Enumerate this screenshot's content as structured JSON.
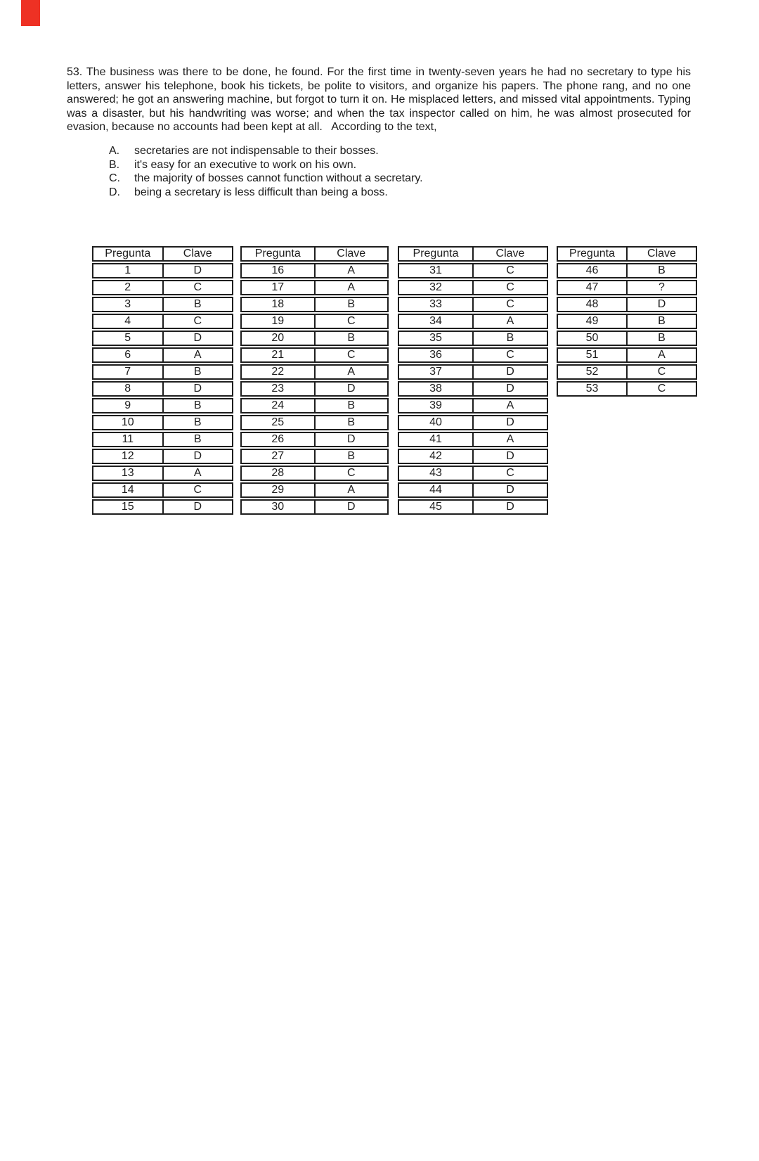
{
  "page": {
    "red_mark_color": "#ee3124",
    "background_color": "#ffffff",
    "text_color": "#1c1c1c"
  },
  "question": {
    "number": "53",
    "paragraph": "53. The business was there to be done, he found. For the first time in twenty-seven years he had no secretary to type his letters, answer his telephone, book his tickets, be polite to visitors, and organize his papers. The phone rang, and no one answered; he got an answering machine, but forgot to turn it on. He misplaced letters, and missed vital appointments. Typing was a disaster, but his handwriting was worse; and when the tax inspector called on him, he was almost prosecuted for evasion, because no accounts had been kept at all.   According to the text,",
    "options": [
      {
        "label": "A.",
        "text": "secretaries are not indispensable to their bosses."
      },
      {
        "label": "B.",
        "text": "it's easy for an executive to work on his own."
      },
      {
        "label": "C.",
        "text": "the majority of bosses cannot function without a secretary."
      },
      {
        "label": "D.",
        "text": "being a secretary is less difficult than being a boss."
      }
    ]
  },
  "answer_tables": [
    {
      "headers": [
        "Pregunta",
        "Clave"
      ],
      "rows": [
        [
          "1",
          "D"
        ],
        [
          "2",
          "C"
        ],
        [
          "3",
          "B"
        ],
        [
          "4",
          "C"
        ],
        [
          "5",
          "D"
        ],
        [
          "6",
          "A"
        ],
        [
          "7",
          "B"
        ],
        [
          "8",
          "D"
        ],
        [
          "9",
          "B"
        ],
        [
          "10",
          "B"
        ],
        [
          "11",
          "B"
        ],
        [
          "12",
          "D"
        ],
        [
          "13",
          "A"
        ],
        [
          "14",
          "C"
        ],
        [
          "15",
          "D"
        ]
      ]
    },
    {
      "headers": [
        "Pregunta",
        "Clave"
      ],
      "rows": [
        [
          "16",
          "A"
        ],
        [
          "17",
          "A"
        ],
        [
          "18",
          "B"
        ],
        [
          "19",
          "C"
        ],
        [
          "20",
          "B"
        ],
        [
          "21",
          "C"
        ],
        [
          "22",
          "A"
        ],
        [
          "23",
          "D"
        ],
        [
          "24",
          "B"
        ],
        [
          "25",
          "B"
        ],
        [
          "26",
          "D"
        ],
        [
          "27",
          "B"
        ],
        [
          "28",
          "C"
        ],
        [
          "29",
          "A"
        ],
        [
          "30",
          "D"
        ]
      ]
    },
    {
      "headers": [
        "Pregunta",
        "Clave"
      ],
      "rows": [
        [
          "31",
          "C"
        ],
        [
          "32",
          "C"
        ],
        [
          "33",
          "C"
        ],
        [
          "34",
          "A"
        ],
        [
          "35",
          "B"
        ],
        [
          "36",
          "C"
        ],
        [
          "37",
          "D"
        ],
        [
          "38",
          "D"
        ],
        [
          "39",
          "A"
        ],
        [
          "40",
          "D"
        ],
        [
          "41",
          "A"
        ],
        [
          "42",
          "D"
        ],
        [
          "43",
          "C"
        ],
        [
          "44",
          "D"
        ],
        [
          "45",
          "D"
        ]
      ]
    },
    {
      "headers": [
        "Pregunta",
        "Clave"
      ],
      "rows": [
        [
          "46",
          "B"
        ],
        [
          "47",
          "?"
        ],
        [
          "48",
          "D"
        ],
        [
          "49",
          "B"
        ],
        [
          "50",
          "B"
        ],
        [
          "51",
          "A"
        ],
        [
          "52",
          "C"
        ],
        [
          "53",
          "C"
        ]
      ]
    }
  ]
}
